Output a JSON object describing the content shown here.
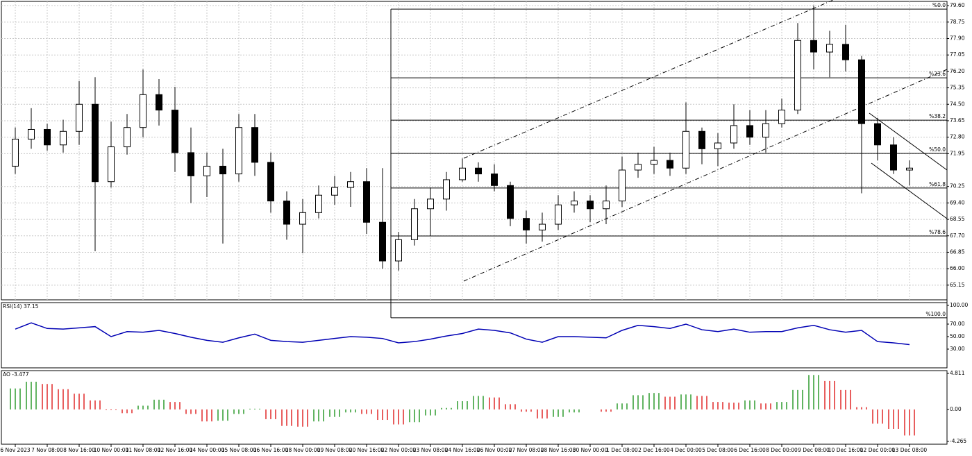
{
  "chart_data": [
    {
      "type": "candlestick",
      "categories": [
        "6 Nov 2023",
        null,
        "7 Nov 08:00",
        null,
        "8 Nov 16:00",
        null,
        "10 Nov 00:00",
        null,
        "11 Nov 08:00",
        null,
        "12 Nov 16:00",
        null,
        "14 Nov 00:00",
        null,
        "15 Nov 08:00",
        null,
        "16 Nov 16:00",
        null,
        "18 Nov 00:00",
        null,
        "19 Nov 08:00",
        null,
        "20 Nov 16:00",
        null,
        "22 Nov 00:00",
        null,
        "23 Nov 08:00",
        null,
        "24 Nov 16:00",
        null,
        "26 Nov 00:00",
        null,
        "27 Nov 08:00",
        null,
        "28 Nov 16:00",
        null,
        "30 Nov 00:00",
        null,
        "1 Dec 08:00",
        null,
        "2 Dec 16:00",
        null,
        "4 Dec 00:00",
        null,
        "5 Dec 08:00",
        null,
        "6 Dec 16:00",
        null,
        "8 Dec 00:00",
        null,
        "9 Dec 08:00",
        null,
        "10 Dec 16:00",
        null,
        "12 Dec 00:00",
        null,
        "13 Dec 08:00"
      ],
      "open": [
        71.3,
        72.7,
        73.2,
        72.4,
        73.1,
        74.5,
        70.5,
        72.3,
        73.3,
        75.0,
        74.2,
        72.0,
        70.8,
        71.3,
        70.9,
        73.3,
        71.5,
        69.5,
        68.3,
        68.9,
        69.8,
        70.2,
        70.5,
        68.4,
        66.4,
        67.5,
        69.1,
        69.6,
        70.6,
        71.2,
        70.9,
        70.3,
        68.6,
        68.0,
        68.3,
        69.3,
        69.5,
        69.1,
        69.5,
        71.1,
        71.4,
        71.6,
        71.2,
        73.1,
        72.2,
        72.5,
        73.4,
        72.8,
        73.5,
        74.2,
        77.8,
        77.2,
        77.6,
        76.8,
        73.5,
        72.4,
        71.1
      ],
      "high": [
        73.3,
        74.3,
        73.5,
        73.7,
        75.7,
        75.9,
        73.6,
        74.0,
        76.3,
        75.8,
        75.4,
        73.3,
        72.0,
        72.2,
        74.0,
        74.0,
        72.0,
        70.0,
        69.6,
        70.3,
        70.8,
        71.0,
        71.2,
        71.2,
        67.9,
        69.6,
        70.2,
        71.0,
        71.7,
        71.5,
        71.4,
        70.5,
        69.0,
        68.9,
        69.8,
        70.0,
        69.8,
        70.3,
        71.8,
        72.0,
        72.3,
        72.0,
        74.6,
        73.3,
        73.0,
        74.5,
        74.2,
        74.2,
        74.8,
        78.7,
        79.6,
        78.3,
        78.6,
        77.0,
        73.8,
        72.8,
        71.6
      ],
      "low": [
        70.9,
        72.2,
        72.1,
        72.0,
        72.4,
        66.9,
        70.2,
        71.9,
        72.8,
        73.4,
        71.0,
        69.4,
        69.7,
        67.3,
        70.5,
        70.8,
        68.9,
        67.5,
        66.8,
        68.6,
        69.3,
        69.2,
        67.8,
        66.0,
        65.9,
        67.2,
        67.7,
        69.0,
        70.5,
        70.5,
        70.0,
        68.2,
        67.3,
        67.4,
        68.0,
        68.9,
        68.4,
        68.3,
        69.2,
        70.7,
        70.9,
        70.8,
        70.9,
        71.4,
        71.3,
        72.2,
        72.4,
        72.0,
        73.3,
        74.0,
        76.3,
        75.9,
        76.2,
        69.9,
        71.6,
        70.9,
        70.3
      ],
      "close": [
        72.7,
        73.2,
        72.4,
        73.1,
        74.5,
        70.5,
        72.3,
        73.3,
        75.0,
        74.2,
        72.0,
        70.8,
        71.3,
        70.9,
        73.3,
        71.5,
        69.5,
        68.3,
        68.9,
        69.8,
        70.2,
        70.5,
        68.4,
        66.4,
        67.5,
        69.1,
        69.6,
        70.6,
        71.2,
        70.9,
        70.3,
        68.6,
        68.0,
        68.3,
        69.3,
        69.5,
        69.1,
        69.5,
        71.1,
        71.4,
        71.6,
        71.2,
        73.1,
        72.2,
        72.5,
        73.4,
        72.8,
        73.5,
        74.2,
        77.8,
        77.2,
        77.6,
        76.8,
        73.5,
        72.4,
        71.1,
        71.2
      ],
      "up_color": "#ffffff",
      "down_color": "#000000",
      "ylim": [
        64.39,
        79.82
      ],
      "yticks": [
        {
          "value": 79.6,
          "label": "79.60"
        },
        {
          "value": 78.75,
          "label": "78.75"
        },
        {
          "value": 77.9,
          "label": "77.90"
        },
        {
          "value": 77.05,
          "label": "77.05"
        },
        {
          "value": 76.2,
          "label": "76.20"
        },
        {
          "value": 75.35,
          "label": "75.35"
        },
        {
          "value": 74.5,
          "label": "74.50"
        },
        {
          "value": 73.65,
          "label": "73.65"
        },
        {
          "value": 72.8,
          "label": "72.80"
        },
        {
          "value": 71.95,
          "label": "71.95"
        },
        {
          "value": 70.25,
          "label": "70.25"
        },
        {
          "value": 69.4,
          "label": "69.40"
        },
        {
          "value": 68.55,
          "label": "68.55"
        },
        {
          "value": 67.7,
          "label": "67.70"
        },
        {
          "value": 66.85,
          "label": "66.85"
        },
        {
          "value": 66.0,
          "label": "66.00"
        },
        {
          "value": 65.15,
          "label": "65.15"
        }
      ],
      "grid": true,
      "fib_levels": [
        {
          "label": "%0.0",
          "value": 79.42
        },
        {
          "label": "%23.6",
          "value": 75.87
        },
        {
          "label": "%38.2",
          "value": 73.68
        },
        {
          "label": "%50.0",
          "value": 71.96
        },
        {
          "label": "%61.8",
          "value": 70.17
        },
        {
          "label": "%78.6",
          "value": 67.69
        },
        {
          "label": "%100.0",
          "value": 63.46
        }
      ]
    },
    {
      "type": "line",
      "title": "RSI(14) 37.15",
      "color": "#0000b4",
      "values": [
        62,
        72,
        63,
        62,
        64,
        66,
        50,
        58,
        57,
        60,
        55,
        49,
        44,
        41,
        48,
        54,
        44,
        42,
        41,
        44,
        47,
        50,
        49,
        47,
        40,
        42,
        46,
        51,
        55,
        62,
        60,
        56,
        46,
        41,
        50,
        50,
        49,
        48,
        60,
        68,
        66,
        63,
        70,
        61,
        58,
        62,
        57,
        58,
        58,
        64,
        68,
        61,
        57,
        60,
        42,
        40,
        37.15
      ],
      "ylim": [
        0,
        104.4
      ],
      "yticks": [
        {
          "value": 100,
          "label": "100.00"
        },
        {
          "value": 70,
          "label": "70.00"
        },
        {
          "value": 50,
          "label": "50.00"
        },
        {
          "value": 30,
          "label": "30.00"
        }
      ]
    },
    {
      "type": "bar",
      "title": "AO -3.477",
      "up_color": "#2e9b2e",
      "down_color": "#e02828",
      "values": [
        2.8,
        3.7,
        3.4,
        2.7,
        2.1,
        1.2,
        -0.1,
        -0.5,
        0.5,
        1.3,
        1.0,
        -0.6,
        -1.6,
        -1.5,
        -0.6,
        0.1,
        -1.3,
        -2.2,
        -2.3,
        -1.6,
        -1.0,
        -0.4,
        -0.6,
        -1.4,
        -2.0,
        -1.7,
        -0.8,
        0.2,
        1.1,
        1.8,
        1.6,
        0.7,
        -0.3,
        -1.2,
        -1.0,
        -0.4,
        0.0,
        -0.3,
        0.8,
        1.9,
        2.2,
        1.7,
        2.0,
        1.8,
        1.0,
        0.9,
        1.2,
        0.8,
        1.0,
        2.6,
        4.6,
        3.8,
        2.6,
        0.3,
        -1.9,
        -2.6,
        -3.477
      ],
      "ylim": [
        -4.64,
        5.18
      ],
      "yticks": [
        4.811,
        {
          "value": 0,
          "label": "0.00"
        },
        -4.265
      ]
    }
  ]
}
